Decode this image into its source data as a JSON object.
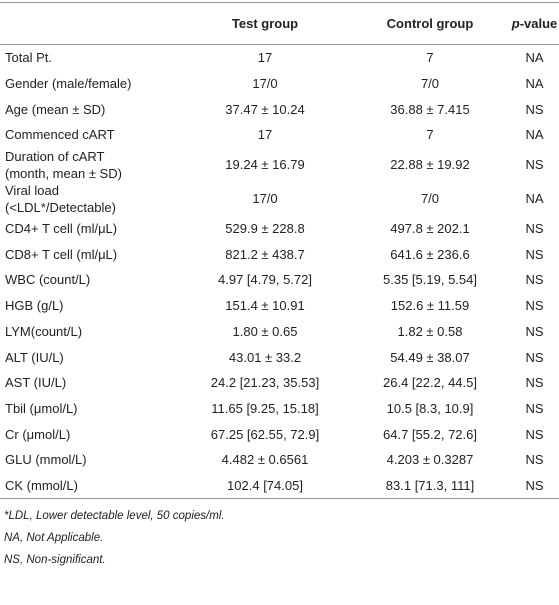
{
  "table": {
    "header": [
      "",
      "Test group",
      "Control group",
      "p-value"
    ],
    "rows": [
      [
        "Total Pt.",
        "17",
        "7",
        "NA"
      ],
      [
        "Gender (male/female)",
        "17/0",
        "7/0",
        "NA"
      ],
      [
        "Age (mean ± SD)",
        "37.47 ± 10.24",
        "36.88 ± 7.415",
        "NS"
      ],
      [
        "Commenced cART",
        "17",
        "7",
        "NA"
      ],
      [
        "Duration of cART\n(month, mean ± SD)",
        "19.24 ± 16.79",
        "22.88 ± 19.92",
        "NS"
      ],
      [
        "Viral load\n(<LDL*/Detectable)",
        "17/0",
        "7/0",
        "NA"
      ],
      [
        "CD4+ T cell (ml/μL)",
        "529.9 ± 228.8",
        "497.8 ± 202.1",
        "NS"
      ],
      [
        "CD8+ T cell (ml/μL)",
        "821.2 ± 438.7",
        "641.6 ± 236.6",
        "NS"
      ],
      [
        "WBC (count/L)",
        "4.97 [4.79, 5.72]",
        "5.35 [5.19, 5.54]",
        "NS"
      ],
      [
        "HGB (g/L)",
        "151.4 ± 10.91",
        "152.6 ± 11.59",
        "NS"
      ],
      [
        "LYM(count/L)",
        "1.80 ± 0.65",
        "1.82 ± 0.58",
        "NS"
      ],
      [
        "ALT (IU/L)",
        "43.01 ± 33.2",
        "54.49 ± 38.07",
        "NS"
      ],
      [
        "AST (IU/L)",
        "24.2 [21.23, 35.53]",
        "26.4 [22.2, 44.5]",
        "NS"
      ],
      [
        "Tbil (μmol/L)",
        "11.65 [9.25, 15.18]",
        "10.5 [8.3, 10.9]",
        "NS"
      ],
      [
        "Cr (μmol/L)",
        "67.25 [62.55, 72.9]",
        "64.7 [55.2, 72.6]",
        "NS"
      ],
      [
        "GLU (mmol/L)",
        "4.482 ± 0.6561",
        "4.203 ± 0.3287",
        "NS"
      ],
      [
        "CK (mmol/L)",
        "102.4 [74.05]",
        "83.1 [71.3, 111]",
        "NS"
      ]
    ]
  },
  "notes": [
    "*LDL, Lower detectable level, 50 copies/ml.",
    "NA, Not Applicable.",
    "NS, Non-significant."
  ]
}
